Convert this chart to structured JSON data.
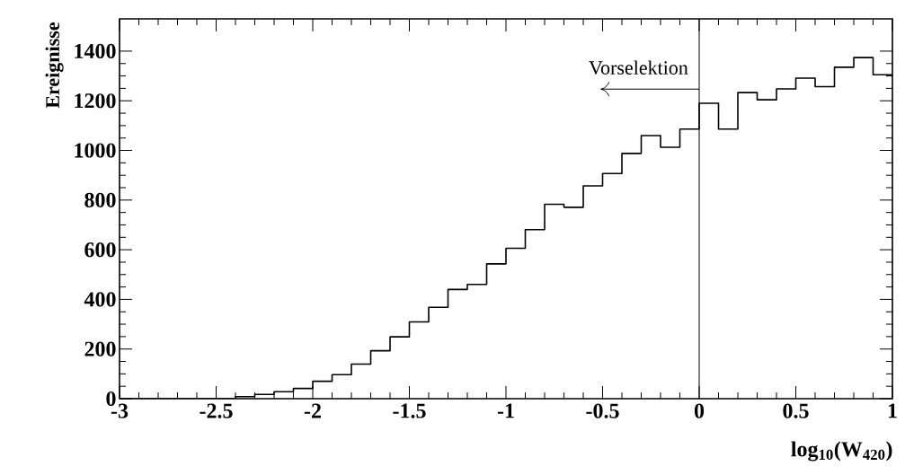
{
  "chart_data": {
    "type": "histogram",
    "xlabel": "log$_{10}$(W$_{420}$)",
    "ylabel": "Ereignisse",
    "bins": [
      -3,
      -2.9,
      -2.8,
      -2.7,
      -2.6,
      -2.5,
      -2.4,
      -2.3,
      -2.2,
      -2.1,
      -2,
      -1.9,
      -1.8,
      -1.7,
      -1.6,
      -1.5,
      -1.4,
      -1.3,
      -1.2,
      -1.1,
      -1,
      -0.9,
      -0.8,
      -0.7,
      -0.6,
      -0.5,
      -0.4,
      -0.3,
      -0.2,
      -0.1,
      0,
      0.1,
      0.2,
      0.3,
      0.4,
      0.5,
      0.6,
      0.7,
      0.8,
      0.9,
      1
    ],
    "values": [
      0,
      0,
      0,
      0,
      0,
      0,
      8,
      17,
      28,
      41,
      70,
      97,
      139,
      193,
      249,
      309,
      368,
      440,
      460,
      543,
      606,
      681,
      783,
      771,
      857,
      907,
      988,
      1060,
      1013,
      1086,
      1190,
      1086,
      1233,
      1204,
      1248,
      1291,
      1257,
      1335,
      1374,
      1305
    ],
    "color": "#000000",
    "xlim": [
      -3,
      1
    ],
    "ylim": [
      0,
      1530
    ],
    "xticks": [
      -3,
      -2.5,
      -2,
      -1.5,
      -1,
      -0.5,
      0,
      0.5,
      1
    ],
    "yticks": [
      0,
      200,
      400,
      600,
      800,
      1000,
      1200,
      1400
    ],
    "ref_lines": [
      {
        "axis": "x",
        "value": 0,
        "label": "Vorselektion",
        "color": "#000000"
      }
    ]
  }
}
